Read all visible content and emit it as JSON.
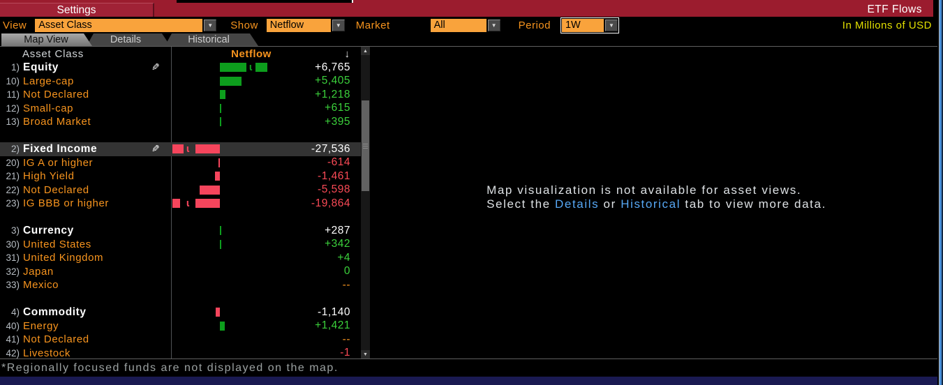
{
  "titlebar": {
    "settings_label": "Settings",
    "app_title": "ETF Flows"
  },
  "controls": {
    "view": {
      "label": "View",
      "value": "Asset Class"
    },
    "show": {
      "label": "Show",
      "value": "Netflow"
    },
    "market": {
      "label": "Market",
      "value": "All"
    },
    "period": {
      "label": "Period",
      "value": "1W"
    },
    "units_note": "In Millions of USD"
  },
  "tabs": [
    {
      "label": "Map View",
      "active": true
    },
    {
      "label": "Details",
      "active": false
    },
    {
      "label": "Historical",
      "active": false
    }
  ],
  "table": {
    "columns": {
      "asset_class": "Asset Class",
      "netflow": "Netflow"
    },
    "rows": [
      {
        "num": "1)",
        "label": "Equity",
        "parent": true,
        "editable": true,
        "value": "+6,765",
        "value_style": "parent",
        "bar": {
          "dir": "pos",
          "color": "green",
          "main": 38,
          "trunc": true,
          "end": 17
        }
      },
      {
        "num": "10)",
        "label": "Large-cap",
        "value": "+5,405",
        "value_style": "green",
        "bar": {
          "dir": "pos",
          "color": "green",
          "main": 31
        }
      },
      {
        "num": "11)",
        "label": "Not Declared",
        "value": "+1,218",
        "value_style": "green",
        "bar": {
          "dir": "pos",
          "color": "green",
          "main": 8
        }
      },
      {
        "num": "12)",
        "label": "Small-cap",
        "value": "+615",
        "value_style": "green",
        "bar": {
          "dir": "pos",
          "color": "green",
          "main": 2
        }
      },
      {
        "num": "13)",
        "label": "Broad Market",
        "value": "+395",
        "value_style": "green",
        "bar": {
          "dir": "pos",
          "color": "green",
          "main": 2
        }
      },
      {
        "spacer": true
      },
      {
        "num": "2)",
        "label": "Fixed Income",
        "parent": true,
        "editable": true,
        "selected": true,
        "value": "-27,536",
        "value_style": "parent",
        "bar": {
          "dir": "neg",
          "color": "red",
          "main": 35,
          "trunc": true,
          "end": 16
        }
      },
      {
        "num": "20)",
        "label": "IG A or higher",
        "value": "-614",
        "value_style": "red",
        "bar": {
          "dir": "neg",
          "color": "red",
          "main": 2
        }
      },
      {
        "num": "21)",
        "label": "High Yield",
        "value": "-1,461",
        "value_style": "red",
        "bar": {
          "dir": "neg",
          "color": "red",
          "main": 7
        }
      },
      {
        "num": "22)",
        "label": "Not Declared",
        "value": "-5,598",
        "value_style": "red",
        "bar": {
          "dir": "neg",
          "color": "red",
          "main": 29
        }
      },
      {
        "num": "23)",
        "label": "IG BBB or higher",
        "value": "-19,864",
        "value_style": "red",
        "bar": {
          "dir": "neg",
          "color": "red",
          "main": 35,
          "trunc": true,
          "end": 11
        }
      },
      {
        "spacer": true
      },
      {
        "num": "3)",
        "label": "Currency",
        "parent": true,
        "value": "+287",
        "value_style": "parent",
        "bar": {
          "dir": "pos",
          "color": "green",
          "main": 2
        }
      },
      {
        "num": "30)",
        "label": "United States",
        "value": "+342",
        "value_style": "green",
        "bar": {
          "dir": "pos",
          "color": "green",
          "main": 2
        }
      },
      {
        "num": "31)",
        "label": "United Kingdom",
        "value": "+4",
        "value_style": "green"
      },
      {
        "num": "32)",
        "label": "Japan",
        "value": "0",
        "value_style": "green"
      },
      {
        "num": "33)",
        "label": "Mexico",
        "value": "--",
        "value_style": "amber"
      },
      {
        "spacer": true
      },
      {
        "num": "4)",
        "label": "Commodity",
        "parent": true,
        "value": "-1,140",
        "value_style": "parent",
        "bar": {
          "dir": "neg",
          "color": "red",
          "main": 6
        }
      },
      {
        "num": "40)",
        "label": "Energy",
        "value": "+1,421",
        "value_style": "green",
        "bar": {
          "dir": "pos",
          "color": "green",
          "main": 7
        }
      },
      {
        "num": "41)",
        "label": "Not Declared",
        "value": "--",
        "value_style": "amber"
      },
      {
        "num": "42)",
        "label": "Livestock",
        "value": "-1",
        "value_style": "red"
      }
    ]
  },
  "message": {
    "line1": "Map visualization is not available for asset views.",
    "line2_prefix": "Select the ",
    "link1": "Details",
    "line2_mid": " or ",
    "link2": "Historical",
    "line2_suffix": " tab to view more data."
  },
  "footer": {
    "note": "*Regionally focused funds are not displayed on the map."
  },
  "icons": {
    "pencil": "✎",
    "truncation": "ɩ",
    "sort_desc": "↓",
    "dropdown_arrow": "▼",
    "scroll_up": "▲",
    "scroll_down": "▼"
  },
  "colors": {
    "amber": "#f7941e",
    "dropdown_bg": "#f9a33c",
    "green_bar": "#0d9e1d",
    "green_text": "#3bd13b",
    "red_bar": "#f5455c",
    "red_text": "#fb4a56",
    "title_red": "#9b1c2e",
    "link_blue": "#57a8f5",
    "units_yellow": "#e3e000",
    "bottom_navy": "#1a1a52",
    "selected_row": "#333333"
  }
}
